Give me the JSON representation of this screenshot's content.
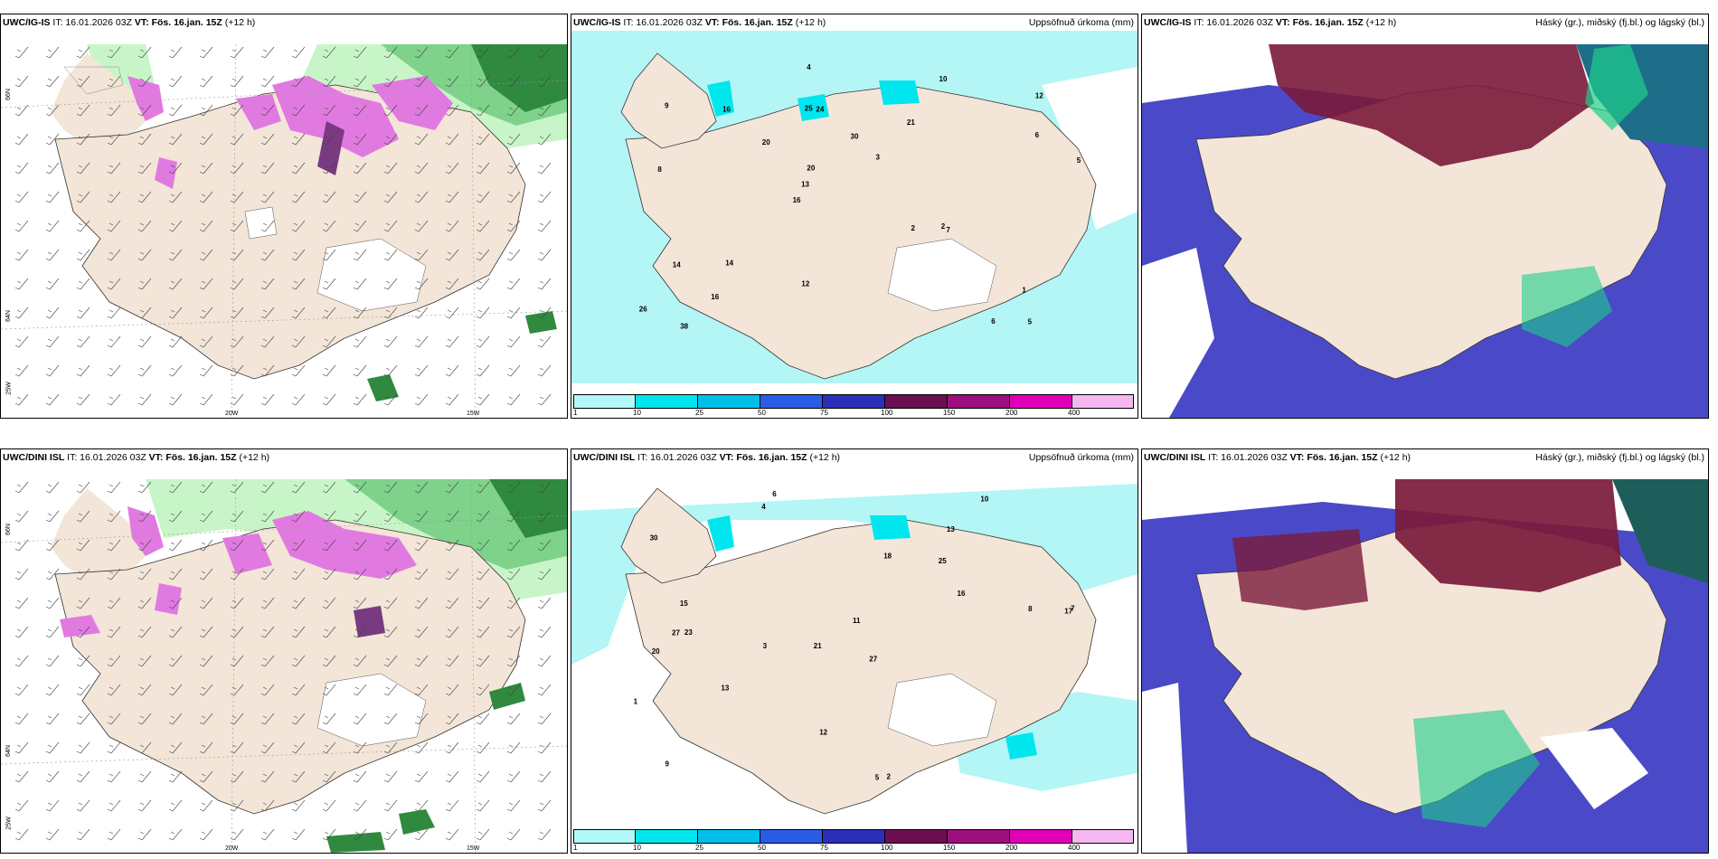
{
  "panels": [
    {
      "model": "UWC/IG-IS",
      "it": "IT: 16.01.2026 03Z",
      "vt": "VT: Fös. 16.jan. 15Z",
      "lead": "(+12 h)",
      "right": ""
    },
    {
      "model": "UWC/IG-IS",
      "it": "IT: 16.01.2026 03Z",
      "vt": "VT: Fös. 16.jan. 15Z",
      "lead": "(+12 h)",
      "right": "Uppsöfnuð úrkoma (mm)"
    },
    {
      "model": "UWC/IG-IS",
      "it": "IT: 16.01.2026 03Z",
      "vt": "VT: Fös. 16.jan. 15Z",
      "lead": "(+12 h)",
      "right": "Háský (gr.), miðský (fj.bl.) og lágský (bl.)"
    },
    {
      "model": "UWC/DINI ISL",
      "it": "IT: 16.01.2026 03Z",
      "vt": "VT: Fös. 16.jan. 15Z",
      "lead": "(+12 h)",
      "right": ""
    },
    {
      "model": "UWC/DINI ISL",
      "it": "IT: 16.01.2026 03Z",
      "vt": "VT: Fös. 16.jan. 15Z",
      "lead": "(+12 h)",
      "right": "Uppsöfnuð úrkoma (mm)"
    },
    {
      "model": "UWC/DINI ISL",
      "it": "IT: 16.01.2026 03Z",
      "vt": "VT: Fös. 16.jan. 15Z",
      "lead": "(+12 h)",
      "right": "Háský (gr.), miðský (fj.bl.) og lágský (bl.)"
    }
  ],
  "axis_labels": {
    "lon20": "20W",
    "lon15": "15W",
    "lat66": "66N",
    "lat64": "64N",
    "lon25": "25W"
  },
  "colorbar": {
    "ticks": [
      "1",
      "10",
      "25",
      "50",
      "75",
      "100",
      "150",
      "200",
      "400"
    ],
    "colors": [
      "#b3f8f8",
      "#00e6ee",
      "#00c0ea",
      "#2a5de6",
      "#2b2fb8",
      "#6b0f50",
      "#9c0f7c",
      "#e000b8",
      "#f4b7f0"
    ]
  },
  "colors": {
    "land": "#f3e5d7",
    "precip": "#b4f5f5",
    "snow_pink": "#e07ae0",
    "snow_dark": "#7a3a82",
    "green_l": "#c8f5c8",
    "green_m": "#7ed28a",
    "green_d": "#2f8a3f",
    "cloud_high": "#7a1a3a",
    "cloud_mid": "#4a4ac8",
    "cloud_low": "#1ecf8a"
  },
  "precip_labels_top": [
    "5",
    "8",
    "12",
    "16",
    "21",
    "38",
    "25",
    "30",
    "14",
    "20",
    "26",
    "16",
    "24",
    "3",
    "7",
    "9",
    "4",
    "5",
    "2",
    "6",
    "13",
    "12",
    "20",
    "16",
    "10",
    "14",
    "6",
    "1",
    "2"
  ],
  "precip_labels_bottom": [
    "6",
    "13",
    "17",
    "21",
    "27",
    "23",
    "30",
    "25",
    "20",
    "18",
    "11",
    "9",
    "4",
    "3",
    "5",
    "2",
    "12",
    "10",
    "16",
    "13",
    "15",
    "27",
    "7",
    "8",
    "1"
  ]
}
